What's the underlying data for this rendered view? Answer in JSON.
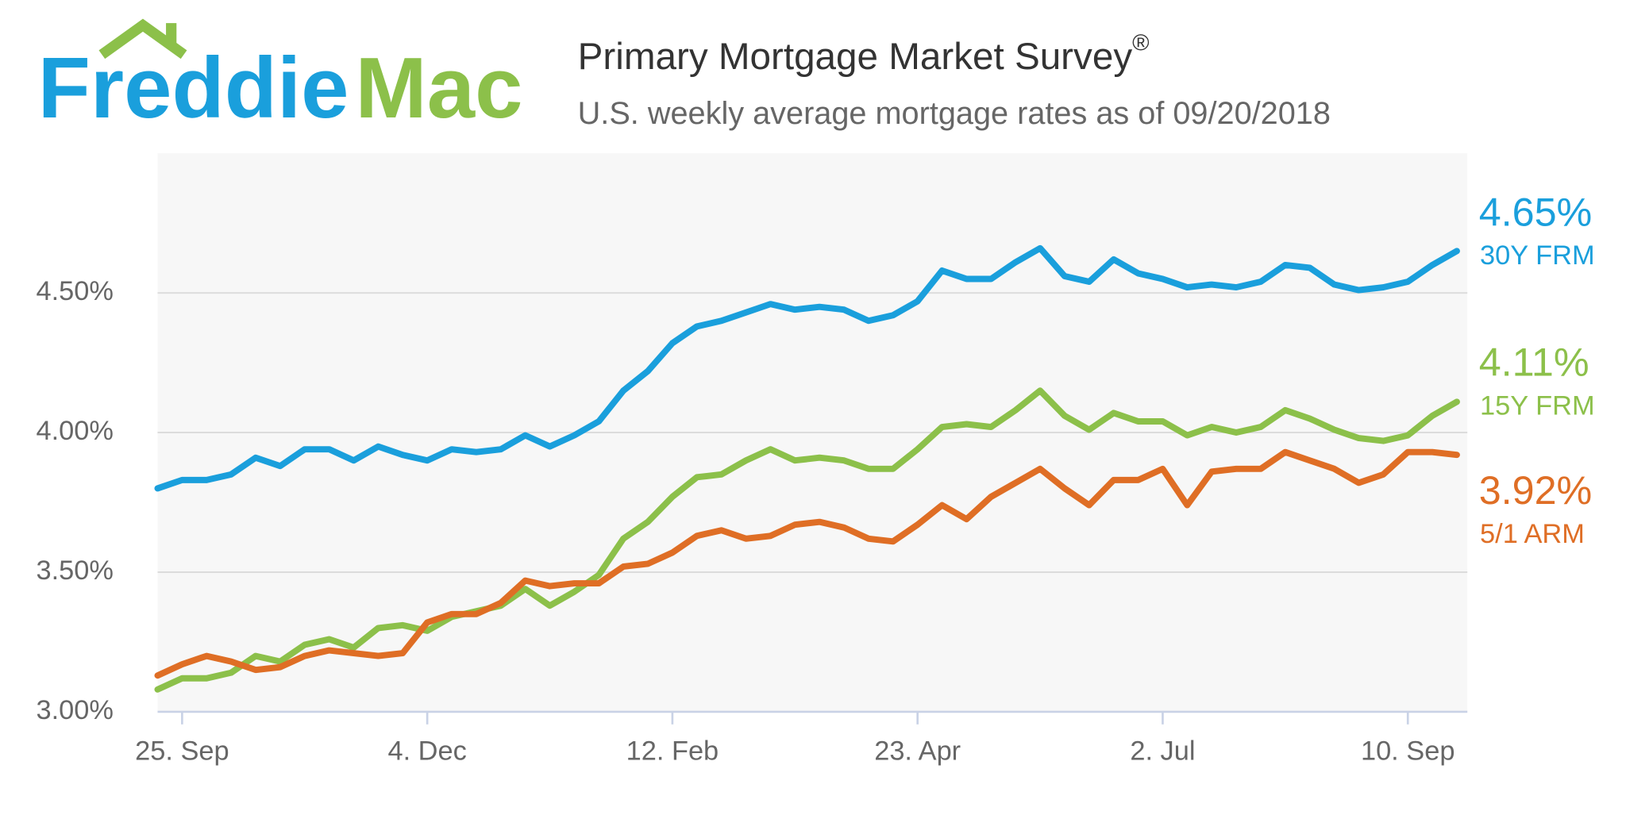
{
  "logo": {
    "left": "Freddie",
    "right": "Mac"
  },
  "chart_data": {
    "type": "line",
    "title": "Primary Mortgage Market Survey",
    "title_superscript": "®",
    "subtitle": "U.S. weekly average mortgage rates as of 09/20/2018",
    "categories": [
      null,
      "25. Sep",
      null,
      null,
      null,
      null,
      null,
      null,
      null,
      null,
      null,
      "4. Dec",
      null,
      null,
      null,
      null,
      null,
      null,
      null,
      null,
      null,
      "12. Feb",
      null,
      null,
      null,
      null,
      null,
      null,
      null,
      null,
      null,
      "23. Apr",
      null,
      null,
      null,
      null,
      null,
      null,
      null,
      null,
      null,
      "2. Jul",
      null,
      null,
      null,
      null,
      null,
      null,
      null,
      null,
      null,
      "10. Sep",
      null,
      null
    ],
    "ylim": [
      3,
      5
    ],
    "yticks": [
      {
        "value": 3,
        "label": "3.00%"
      },
      {
        "value": 3.5,
        "label": "3.50%"
      },
      {
        "value": 4,
        "label": "4.00%"
      },
      {
        "value": 4.5,
        "label": "4.50%"
      }
    ],
    "grid": true,
    "series": [
      {
        "name": "30Y FRM",
        "color": "#1a9fdc",
        "values": [
          3.8,
          3.83,
          3.83,
          3.85,
          3.91,
          3.88,
          3.94,
          3.94,
          3.9,
          3.95,
          3.92,
          3.9,
          3.94,
          3.93,
          3.94,
          3.99,
          3.95,
          3.99,
          4.04,
          4.15,
          4.22,
          4.32,
          4.38,
          4.4,
          4.43,
          4.46,
          4.44,
          4.45,
          4.44,
          4.4,
          4.42,
          4.47,
          4.58,
          4.55,
          4.55,
          4.61,
          4.66,
          4.56,
          4.54,
          4.62,
          4.57,
          4.55,
          4.52,
          4.53,
          4.52,
          4.54,
          4.6,
          4.59,
          4.53,
          4.51,
          4.52,
          4.54,
          4.6,
          4.65
        ],
        "value_labels": [
          null,
          null,
          null,
          null,
          null,
          null,
          null,
          null,
          null,
          null,
          null,
          null,
          null,
          null,
          null,
          null,
          null,
          null,
          null,
          null,
          null,
          null,
          null,
          null,
          null,
          null,
          null,
          null,
          null,
          null,
          null,
          null,
          null,
          null,
          null,
          null,
          null,
          null,
          null,
          null,
          null,
          null,
          null,
          null,
          null,
          null,
          null,
          null,
          null,
          null,
          null,
          null,
          null,
          "4.65%"
        ]
      },
      {
        "name": "15Y FRM",
        "color": "#8cc04a",
        "values": [
          3.08,
          3.12,
          3.12,
          3.14,
          3.2,
          3.18,
          3.24,
          3.26,
          3.23,
          3.3,
          3.31,
          3.29,
          3.34,
          3.36,
          3.38,
          3.44,
          3.38,
          3.43,
          3.49,
          3.62,
          3.68,
          3.77,
          3.84,
          3.85,
          3.9,
          3.94,
          3.9,
          3.91,
          3.9,
          3.87,
          3.87,
          3.94,
          4.02,
          4.03,
          4.02,
          4.08,
          4.15,
          4.06,
          4.01,
          4.07,
          4.04,
          4.04,
          3.99,
          4.02,
          4.0,
          4.02,
          4.08,
          4.05,
          4.01,
          3.98,
          3.97,
          3.99,
          4.06,
          4.11
        ],
        "value_labels": [
          null,
          null,
          null,
          null,
          null,
          null,
          null,
          null,
          null,
          null,
          null,
          null,
          null,
          null,
          null,
          null,
          null,
          null,
          null,
          null,
          null,
          null,
          null,
          null,
          null,
          null,
          null,
          null,
          null,
          null,
          null,
          null,
          null,
          null,
          null,
          null,
          null,
          null,
          null,
          null,
          null,
          null,
          null,
          null,
          null,
          null,
          null,
          null,
          null,
          null,
          null,
          null,
          null,
          "4.11%"
        ]
      },
      {
        "name": "5/1 ARM",
        "color": "#df6e25",
        "values": [
          3.13,
          3.17,
          3.2,
          3.18,
          3.15,
          3.16,
          3.2,
          3.22,
          3.21,
          3.2,
          3.21,
          3.32,
          3.35,
          3.35,
          3.39,
          3.47,
          3.45,
          3.46,
          3.46,
          3.52,
          3.53,
          3.57,
          3.63,
          3.65,
          3.62,
          3.63,
          3.67,
          3.68,
          3.66,
          3.62,
          3.61,
          3.67,
          3.74,
          3.69,
          3.77,
          3.82,
          3.87,
          3.8,
          3.74,
          3.83,
          3.83,
          3.87,
          3.74,
          3.86,
          3.87,
          3.87,
          3.93,
          3.9,
          3.87,
          3.82,
          3.85,
          3.93,
          3.93,
          3.92
        ],
        "value_labels": [
          null,
          null,
          null,
          null,
          null,
          null,
          null,
          null,
          null,
          null,
          null,
          null,
          null,
          null,
          null,
          null,
          null,
          null,
          null,
          null,
          null,
          null,
          null,
          null,
          null,
          null,
          null,
          null,
          null,
          null,
          null,
          null,
          null,
          null,
          null,
          null,
          null,
          null,
          null,
          null,
          null,
          null,
          null,
          null,
          null,
          null,
          null,
          null,
          null,
          null,
          null,
          null,
          null,
          "3.92%"
        ]
      }
    ]
  }
}
